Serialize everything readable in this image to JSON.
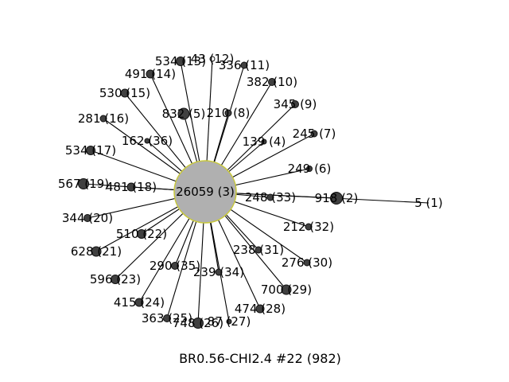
{
  "caption": "BR0.56-CHI2.4 #22 (982)",
  "colors": {
    "hub_fill": "#b0b0b0",
    "hub_stroke": "#c8c83a",
    "node_fill": "#404040",
    "edge": "#000000"
  },
  "hub": {
    "id": "hub",
    "label": "26059 (3)"
  },
  "nodes": [
    {
      "id": "n1",
      "label": "5 (1)"
    },
    {
      "id": "n2",
      "label": "918 (2)"
    },
    {
      "id": "n4",
      "label": "139 (4)"
    },
    {
      "id": "n5",
      "label": "832 (5)"
    },
    {
      "id": "n6",
      "label": "249 (6)"
    },
    {
      "id": "n7",
      "label": "245 (7)"
    },
    {
      "id": "n8",
      "label": "210 (8)"
    },
    {
      "id": "n9",
      "label": "345 (9)"
    },
    {
      "id": "n10",
      "label": "382 (10)"
    },
    {
      "id": "n11",
      "label": "336 (11)"
    },
    {
      "id": "n12",
      "label": "43 (12)"
    },
    {
      "id": "n13",
      "label": "534 (13)"
    },
    {
      "id": "n14",
      "label": "491 (14)"
    },
    {
      "id": "n15",
      "label": "530 (15)"
    },
    {
      "id": "n16",
      "label": "281 (16)"
    },
    {
      "id": "n17",
      "label": "534 (17)"
    },
    {
      "id": "n18",
      "label": "481 (18)"
    },
    {
      "id": "n19",
      "label": "567 (19)"
    },
    {
      "id": "n20",
      "label": "344 (20)"
    },
    {
      "id": "n21",
      "label": "628 (21)"
    },
    {
      "id": "n22",
      "label": "510 (22)"
    },
    {
      "id": "n23",
      "label": "596 (23)"
    },
    {
      "id": "n24",
      "label": "415 (24)"
    },
    {
      "id": "n25",
      "label": "363 (25)"
    },
    {
      "id": "n26",
      "label": "748 (26)"
    },
    {
      "id": "n27",
      "label": "87 (27)"
    },
    {
      "id": "n28",
      "label": "474 (28)"
    },
    {
      "id": "n29",
      "label": "700 (29)"
    },
    {
      "id": "n30",
      "label": "276 (30)"
    },
    {
      "id": "n31",
      "label": "238 (31)"
    },
    {
      "id": "n32",
      "label": "212 (32)"
    },
    {
      "id": "n33",
      "label": "248 (33)"
    },
    {
      "id": "n34",
      "label": "239 (34)"
    },
    {
      "id": "n35",
      "label": "290 (35)"
    },
    {
      "id": "n36",
      "label": "162 (36)"
    }
  ]
}
